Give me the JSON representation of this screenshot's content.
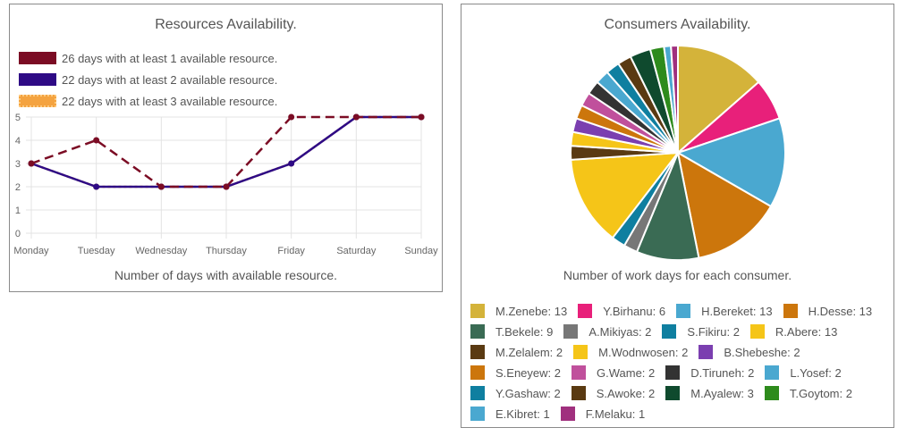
{
  "left": {
    "title": "Resources Availability.",
    "caption": "Number of days with available resource."
  },
  "right": {
    "title": "Consumers Availability.",
    "caption": "Number of work days for each consumer."
  },
  "chart_data": [
    {
      "type": "line",
      "title": "Resources Availability.",
      "xlabel": "Number of days with available resource.",
      "ylabel": "",
      "categories": [
        "Monday",
        "Tuesday",
        "Wednesday",
        "Thursday",
        "Friday",
        "Saturday",
        "Sunday"
      ],
      "ylim": [
        0,
        5
      ],
      "yticks": [
        "0",
        "1",
        "2",
        "3",
        "4",
        "5"
      ],
      "grid": true,
      "legend_position": "top-left",
      "series": [
        {
          "name": "26 days with at least 1 available resource.",
          "values": [
            3,
            4,
            2,
            2,
            5,
            5,
            5
          ],
          "color": "#7b0c24",
          "dashed": true
        },
        {
          "name": "22 days with at least 2 available resource.",
          "values": [
            3,
            2,
            2,
            2,
            3,
            5,
            5
          ],
          "color": "#2e0a85",
          "dashed": false
        },
        {
          "name": "22 days with at least 3 available resource.",
          "values": [
            3,
            2,
            2,
            2,
            3,
            5,
            5
          ],
          "color": "#f4a340",
          "dashed": true
        }
      ]
    },
    {
      "type": "pie",
      "title": "Consumers Availability.",
      "xlabel": "Number of work days for each consumer.",
      "legend_position": "bottom",
      "slices": [
        {
          "label": "M.Zenebe: 13",
          "value": 13,
          "color": "#d4b33a"
        },
        {
          "label": "Y.Birhanu: 6",
          "value": 6,
          "color": "#e8207a"
        },
        {
          "label": "H.Bereket: 13",
          "value": 13,
          "color": "#4aa8d0"
        },
        {
          "label": "H.Desse: 13",
          "value": 13,
          "color": "#cc760c"
        },
        {
          "label": "T.Bekele: 9",
          "value": 9,
          "color": "#3a6b54"
        },
        {
          "label": "A.Mikiyas: 2",
          "value": 2,
          "color": "#777777"
        },
        {
          "label": "S.Fikiru: 2",
          "value": 2,
          "color": "#0f7fa0"
        },
        {
          "label": "R.Abere: 13",
          "value": 13,
          "color": "#f5c518"
        },
        {
          "label": "M.Zelalem: 2",
          "value": 2,
          "color": "#5a3a12"
        },
        {
          "label": "M.Wodnwosen: 2",
          "value": 2,
          "color": "#f5c518"
        },
        {
          "label": "B.Shebeshe: 2",
          "value": 2,
          "color": "#7b3fb0"
        },
        {
          "label": "S.Eneyew: 2",
          "value": 2,
          "color": "#cc760c"
        },
        {
          "label": "G.Wame: 2",
          "value": 2,
          "color": "#c0509c"
        },
        {
          "label": "D.Tiruneh: 2",
          "value": 2,
          "color": "#333333"
        },
        {
          "label": "L.Yosef: 2",
          "value": 2,
          "color": "#4aa8d0"
        },
        {
          "label": "Y.Gashaw: 2",
          "value": 2,
          "color": "#0f7fa0"
        },
        {
          "label": "S.Awoke: 2",
          "value": 2,
          "color": "#5a3a12"
        },
        {
          "label": "M.Ayalew: 3",
          "value": 3,
          "color": "#0f4a2e"
        },
        {
          "label": "T.Goytom: 2",
          "value": 2,
          "color": "#2e8b1c"
        },
        {
          "label": "E.Kibret: 1",
          "value": 1,
          "color": "#4aa8d0"
        },
        {
          "label": "F.Melaku: 1",
          "value": 1,
          "color": "#a0307e"
        }
      ]
    }
  ]
}
